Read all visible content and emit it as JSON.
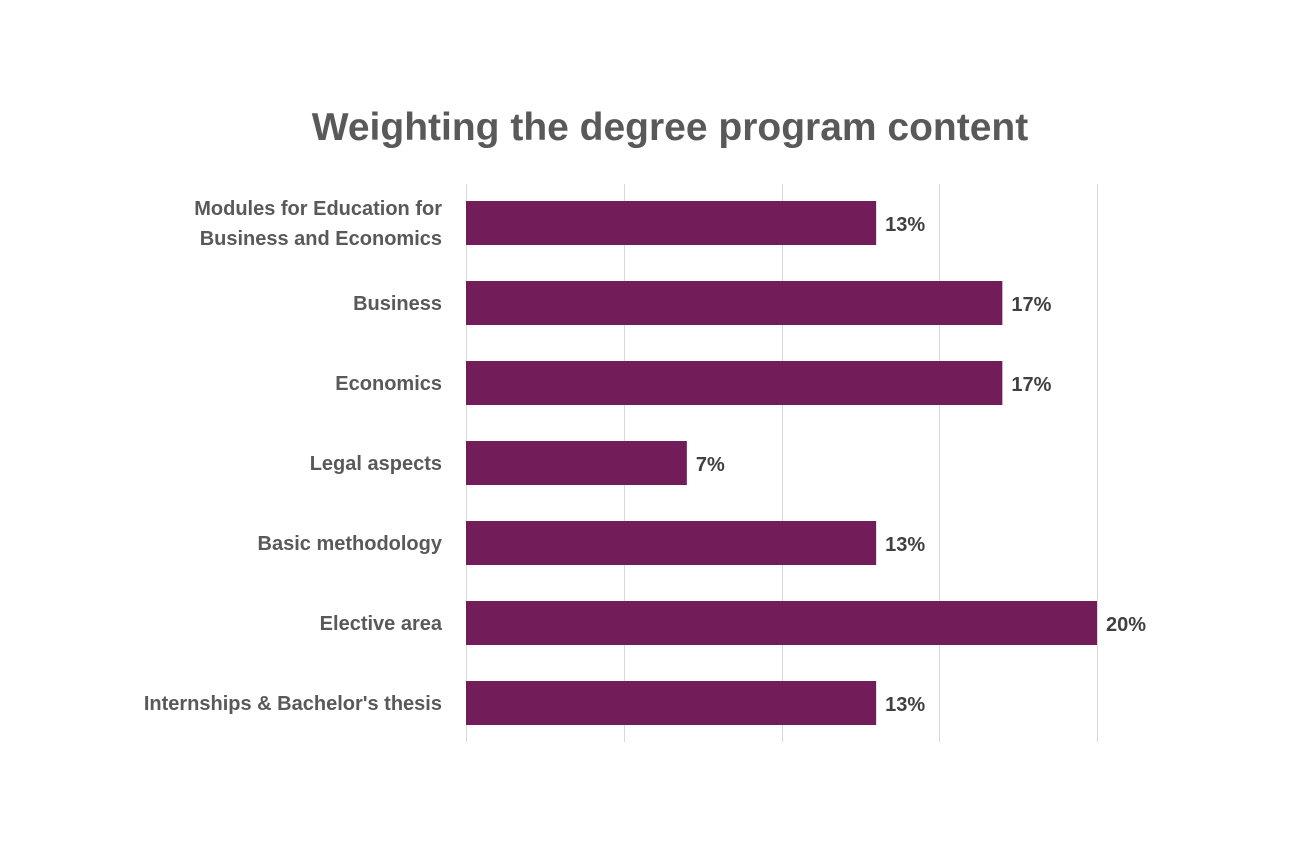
{
  "chart_data": {
    "type": "bar",
    "orientation": "horizontal",
    "title": "Weighting the degree program content",
    "categories": [
      [
        "Modules for Education for",
        "Business and Economics"
      ],
      [
        "Business"
      ],
      [
        "Economics"
      ],
      [
        "Legal aspects"
      ],
      [
        "Basic methodology"
      ],
      [
        "Elective area"
      ],
      [
        "Internships & Bachelor's thesis"
      ]
    ],
    "values": [
      13,
      17,
      17,
      7,
      13,
      20,
      13
    ],
    "value_labels": [
      "13%",
      "17%",
      "17%",
      "7%",
      "13%",
      "20%",
      "13%"
    ],
    "xlim": [
      0,
      20
    ],
    "grid": true,
    "bar_color": "#721d5a",
    "gridline_color": "#d9d9d9"
  }
}
